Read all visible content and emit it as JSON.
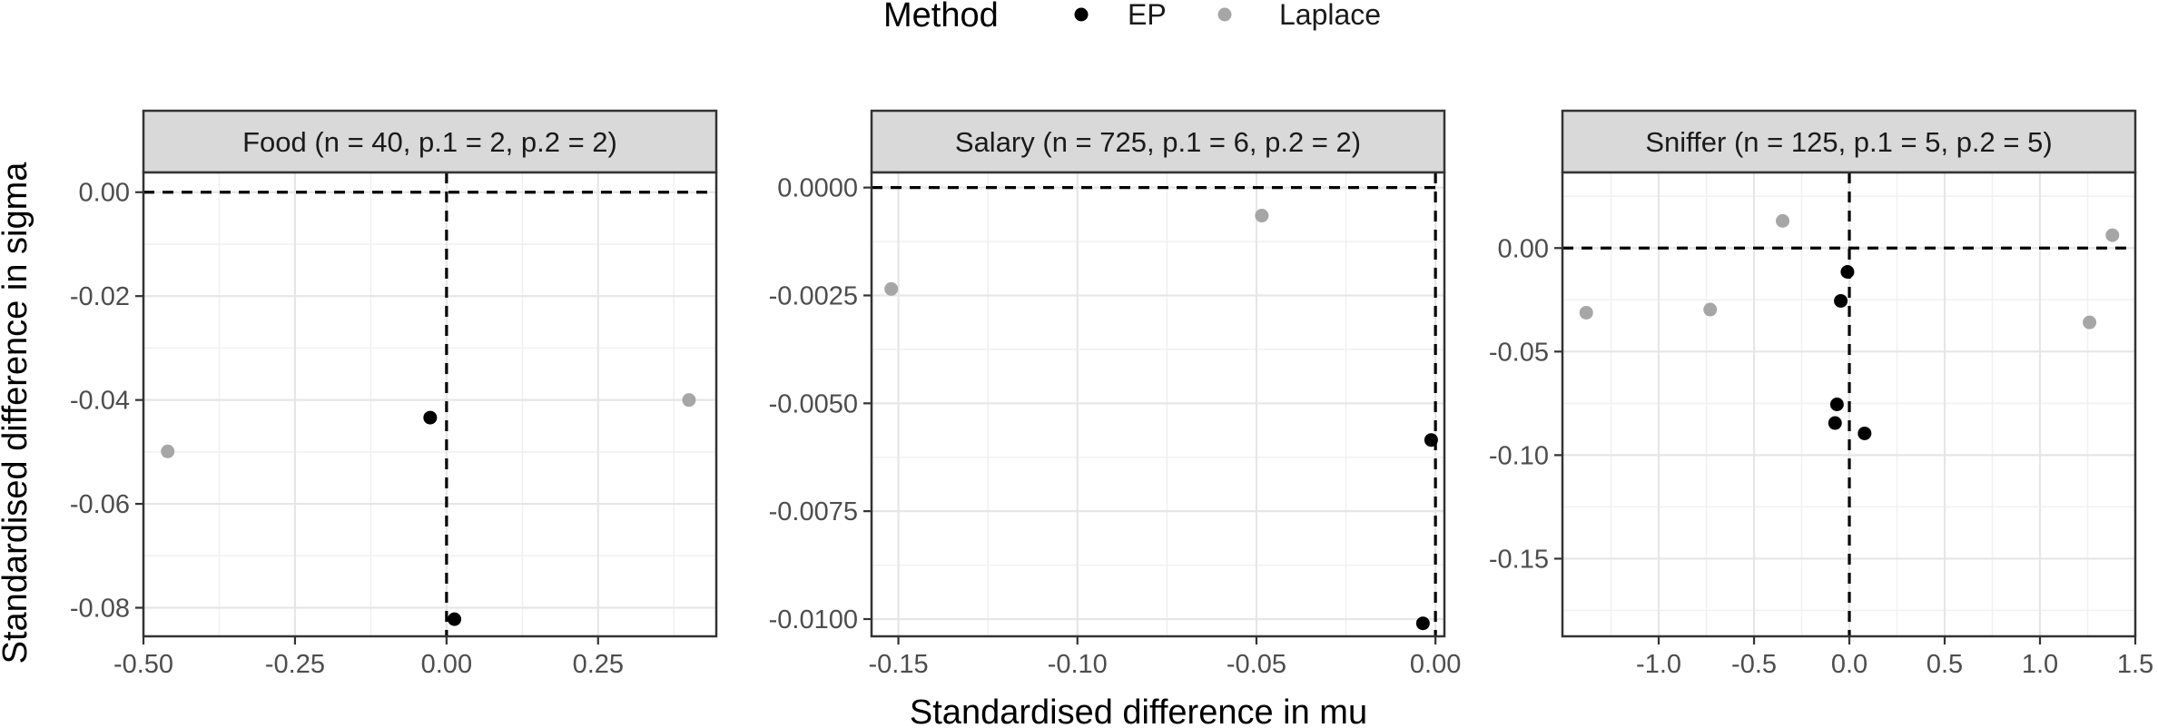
{
  "legend": {
    "title": "Method",
    "items": [
      {
        "label": "EP",
        "color": "#000000"
      },
      {
        "label": "Laplace",
        "color": "#a6a6a6"
      }
    ]
  },
  "axes": {
    "xlabel": "Standardised difference in mu",
    "ylabel": "Standardised difference in sigma"
  },
  "chart_data": [
    {
      "type": "scatter",
      "title": "Food (n = 40, p.1 = 2, p.2 = 2)",
      "xlim": [
        -0.5,
        0.445
      ],
      "ylim": [
        -0.0855,
        0.0038
      ],
      "xticks": [
        -0.5,
        -0.25,
        0.0,
        0.25
      ],
      "xtick_labels": [
        "-0.50",
        "-0.25",
        "0.00",
        "0.25"
      ],
      "yticks": [
        0.0,
        -0.02,
        -0.04,
        -0.06,
        -0.08
      ],
      "ytick_labels": [
        "0.00",
        "-0.02",
        "-0.04",
        "-0.06",
        "-0.08"
      ],
      "ref_x": 0.0,
      "ref_y": 0.0,
      "grid": true,
      "series": [
        {
          "name": "EP",
          "points": [
            [
              -0.027,
              -0.0434
            ],
            [
              0.013,
              -0.0822
            ]
          ]
        },
        {
          "name": "Laplace",
          "points": [
            [
              -0.46,
              -0.0499
            ],
            [
              0.4,
              -0.04
            ]
          ]
        }
      ]
    },
    {
      "type": "scatter",
      "title": "Salary (n = 725, p.1 = 6, p.2 = 2)",
      "xlim": [
        -0.1575,
        0.0025
      ],
      "ylim": [
        -0.0104,
        0.00035
      ],
      "xticks": [
        -0.15,
        -0.1,
        -0.05,
        0.0
      ],
      "xtick_labels": [
        "-0.15",
        "-0.10",
        "-0.05",
        "0.00"
      ],
      "yticks": [
        0.0,
        -0.0025,
        -0.005,
        -0.0075,
        -0.01
      ],
      "ytick_labels": [
        "0.0000",
        "-0.0025",
        "-0.0050",
        "-0.0075",
        "-0.0100"
      ],
      "ref_x": 0.0,
      "ref_y": 0.0,
      "grid": true,
      "series": [
        {
          "name": "EP",
          "points": [
            [
              -0.0012,
              -0.00585
            ],
            [
              -0.0035,
              -0.0101
            ]
          ]
        },
        {
          "name": "Laplace",
          "points": [
            [
              -0.152,
              -0.00235
            ],
            [
              -0.0485,
              -0.00065
            ]
          ]
        }
      ]
    },
    {
      "type": "scatter",
      "title": "Sniffer (n = 125, p.1 = 5, p.2 = 5)",
      "xlim": [
        -1.505,
        1.5
      ],
      "ylim": [
        -0.1875,
        0.0365
      ],
      "xticks": [
        -1.0,
        -0.5,
        0.0,
        0.5,
        1.0,
        1.5
      ],
      "xtick_labels": [
        "-1.0",
        "-0.5",
        "0.0",
        "0.5",
        "1.0",
        "1.5"
      ],
      "yticks": [
        0.0,
        -0.05,
        -0.1,
        -0.15
      ],
      "ytick_labels": [
        "0.00",
        "-0.05",
        "-0.10",
        "-0.15"
      ],
      "ref_x": 0.0,
      "ref_y": 0.0,
      "grid": true,
      "series": [
        {
          "name": "EP",
          "points": [
            [
              -0.01,
              -0.0115
            ],
            [
              -0.045,
              -0.0255
            ],
            [
              -0.065,
              -0.0755
            ],
            [
              -0.075,
              -0.0845
            ],
            [
              0.08,
              -0.0895
            ]
          ]
        },
        {
          "name": "Laplace",
          "points": [
            [
              -1.38,
              -0.0312
            ],
            [
              -0.73,
              -0.0297
            ],
            [
              -0.35,
              0.0131
            ],
            [
              1.26,
              -0.0359
            ],
            [
              1.38,
              0.0062
            ]
          ]
        }
      ]
    }
  ]
}
